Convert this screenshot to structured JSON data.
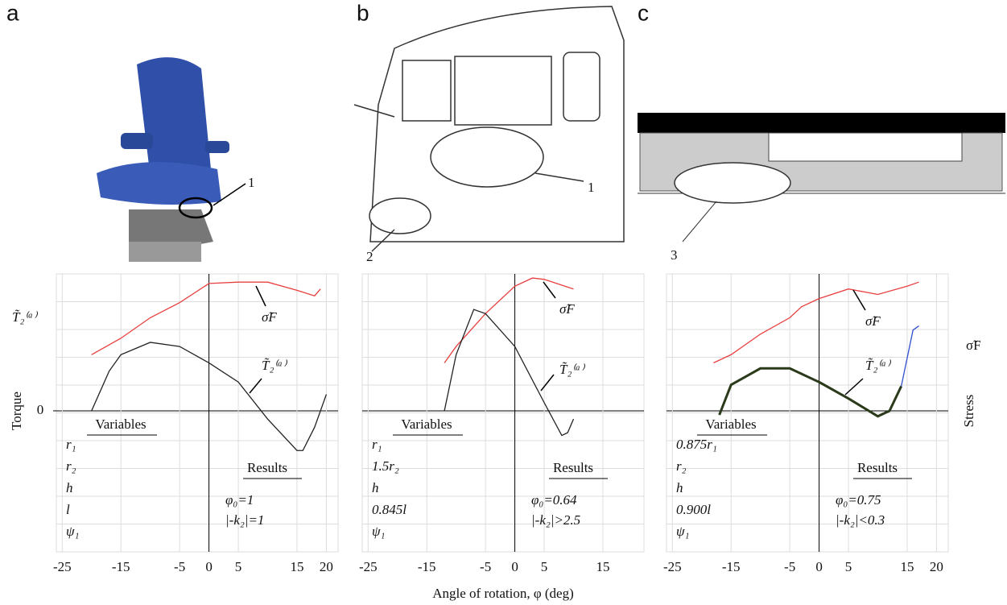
{
  "panel_labels": [
    "a",
    "b",
    "c"
  ],
  "callouts": [
    "1",
    "1",
    "2",
    "3"
  ],
  "y_label": "Torque",
  "y_symbol": "T̃₂⁽ᵃ⁾",
  "y2_label": "Stress",
  "y2_symbol": "σ̃F",
  "x_label": "Angle of rotation, φ (deg)",
  "chart_data": [
    {
      "type": "line",
      "xlim": [
        -26,
        22
      ],
      "ylim": [
        -1.03,
        1
      ],
      "xticks": [
        -25,
        -15,
        -5,
        0,
        5,
        15,
        20
      ],
      "yticks": [
        0
      ],
      "grid": true,
      "series": [
        {
          "name": "σ̃F",
          "color": "#e84040",
          "x": [
            -20,
            -15,
            -10,
            -5,
            0,
            5,
            10,
            15,
            18,
            19
          ],
          "values": [
            0.41,
            0.53,
            0.68,
            0.79,
            0.93,
            0.94,
            0.94,
            0.88,
            0.84,
            0.89
          ]
        },
        {
          "name": "T̃₂⁽ᵃ⁾",
          "color": "#222222",
          "x": [
            -20,
            -17,
            -15,
            -10,
            -5,
            0,
            5,
            10,
            15,
            16,
            18,
            20
          ],
          "values": [
            0,
            0.29,
            0.41,
            0.5,
            0.47,
            0.35,
            0.21,
            -0.06,
            -0.29,
            -0.29,
            -0.12,
            0.12
          ]
        }
      ],
      "variables_title": "Variables",
      "variables": [
        "r₁",
        "r₂",
        "h",
        "l",
        "ψ₁"
      ],
      "results_title": "Results",
      "results": [
        "φ₀=1",
        "|-k₂|=1"
      ]
    },
    {
      "type": "line",
      "xlim": [
        -26,
        22
      ],
      "ylim": [
        -1.03,
        1
      ],
      "xticks": [
        -25,
        -15,
        -5,
        0,
        5,
        15
      ],
      "grid": true,
      "series": [
        {
          "name": "σ̃F",
          "color": "#e84040",
          "x": [
            -12,
            -10,
            -5,
            0,
            3,
            5,
            10
          ],
          "values": [
            0.35,
            0.47,
            0.71,
            0.91,
            0.97,
            0.96,
            0.89
          ]
        },
        {
          "name": "T̃₂⁽ᵃ⁾",
          "color": "#222222",
          "x": [
            -12,
            -10,
            -7,
            -5,
            0,
            5,
            8,
            9,
            10
          ],
          "values": [
            0,
            0.41,
            0.74,
            0.71,
            0.47,
            0.06,
            -0.18,
            -0.16,
            -0.06
          ]
        }
      ],
      "variables_title": "Variables",
      "variables": [
        "r₁",
        "1.5r₂",
        "h",
        "0.845l",
        "ψ₁"
      ],
      "results_title": "Results",
      "results": [
        "φ₀=0.64",
        "|-k₂|>2.5"
      ]
    },
    {
      "type": "line",
      "xlim": [
        -26,
        22
      ],
      "ylim": [
        -1.03,
        1
      ],
      "xticks": [
        -25,
        -15,
        -5,
        0,
        5,
        15,
        20
      ],
      "grid": true,
      "series": [
        {
          "name": "σ̃F",
          "color": "#e84040",
          "x": [
            -18,
            -15,
            -10,
            -5,
            -3,
            0,
            5,
            10,
            15,
            17
          ],
          "values": [
            0.35,
            0.41,
            0.56,
            0.68,
            0.76,
            0.82,
            0.89,
            0.85,
            0.91,
            0.94
          ]
        },
        {
          "name": "T̃₂⁽ᵃ⁾",
          "color": "#2a3a1a",
          "x": [
            -17,
            -15,
            -10,
            -5,
            0,
            5,
            10,
            12,
            14
          ],
          "values": [
            -0.03,
            0.19,
            0.31,
            0.31,
            0.21,
            0.09,
            -0.04,
            0,
            0.18
          ]
        },
        {
          "color": "#3050d0",
          "x": [
            14,
            16,
            17
          ],
          "values": [
            0.18,
            0.59,
            0.62
          ]
        }
      ],
      "variables_title": "Variables",
      "variables": [
        "0.875r₁",
        "r₂",
        "h",
        "0.900l",
        "ψ₁"
      ],
      "results_title": "Results",
      "results": [
        "φ₀=0.75",
        "|-k₂|<0.3"
      ]
    }
  ]
}
